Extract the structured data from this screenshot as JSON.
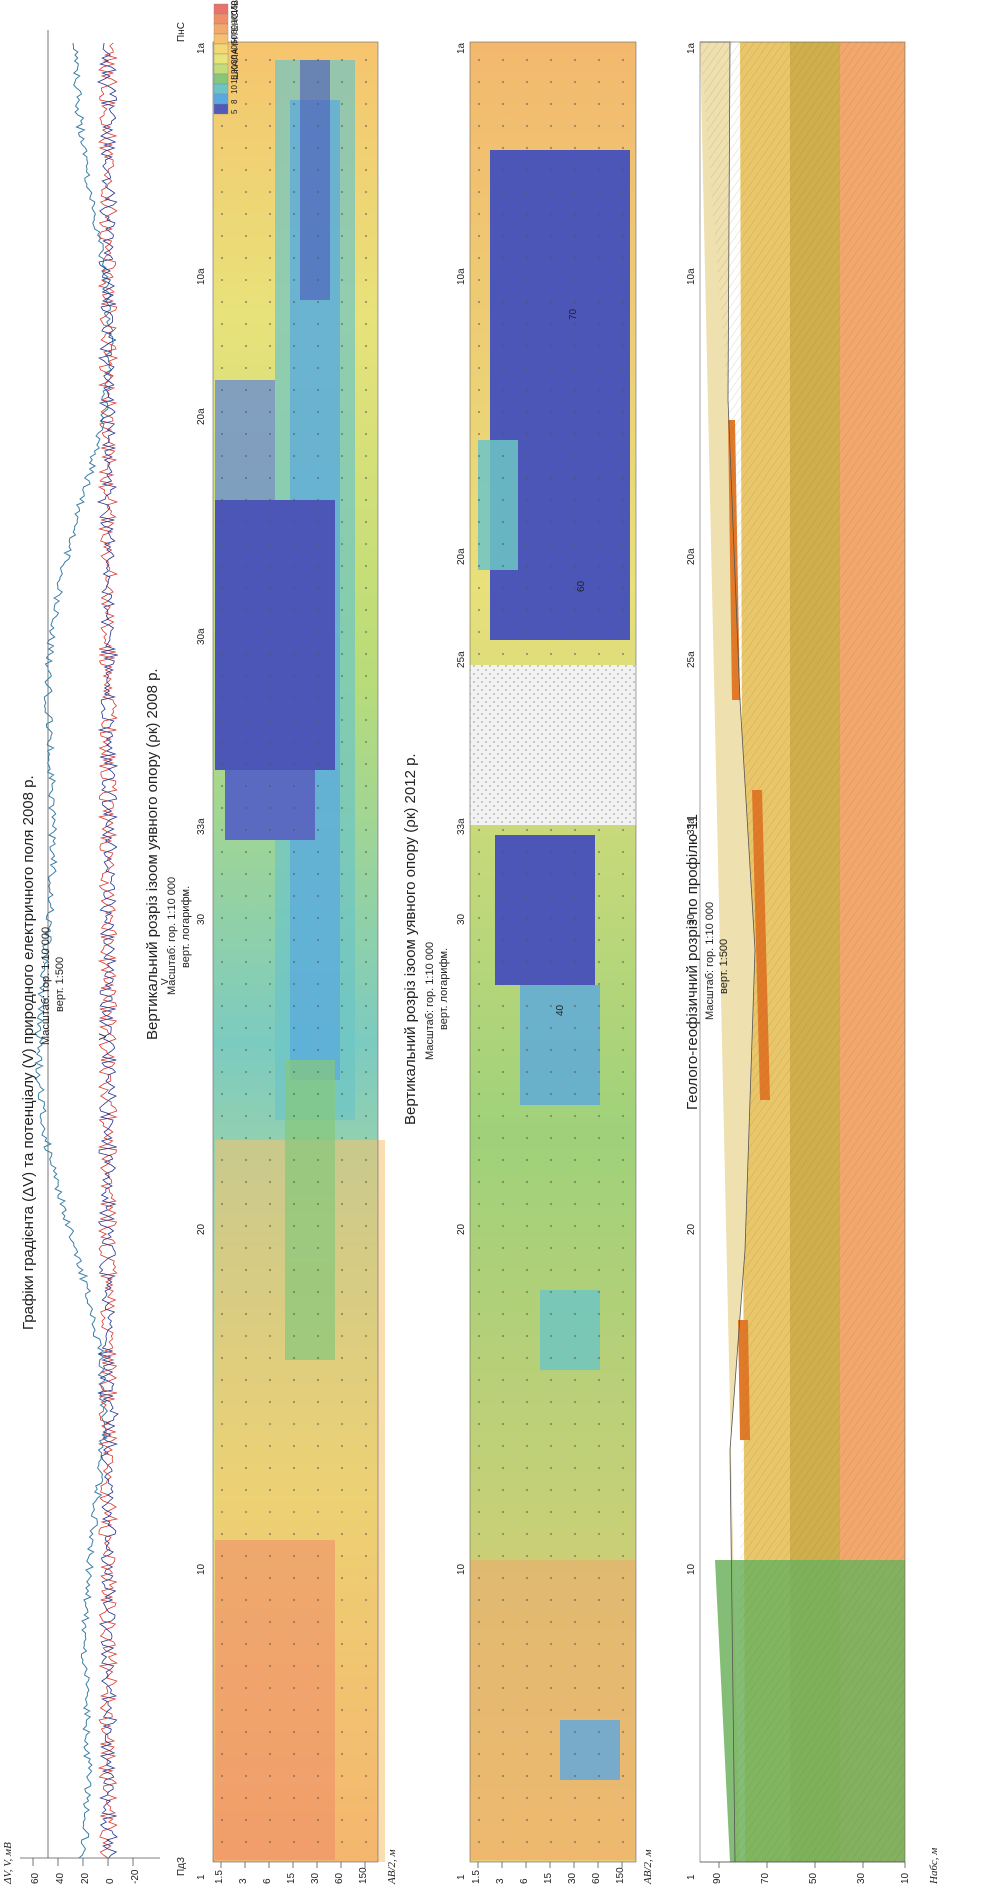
{
  "gradient_panel": {
    "title": "Графіки градієнта (ΔV) та потенціалу (V) природного електричного поля 2008 р.",
    "scale_h": "Масштаб: гор. 1:10 000",
    "scale_v": "верт. 1:500",
    "y_axis_label": "ΔV, V, мВ",
    "y_ticks": [
      "60",
      "40",
      "20",
      "0",
      "-20"
    ],
    "curve_labels": [
      "V",
      "V"
    ]
  },
  "section_2008": {
    "title": "Вертикальний розріз ізоом уявного опору (ρк) 2008 р.",
    "scale_h": "Масштаб: гор. 1:10 000",
    "scale_v": "верт. логарифм.",
    "depth_label": "AB/2, м",
    "depth_ticks": [
      "1.5",
      "3",
      "6",
      "15",
      "30",
      "60",
      "150"
    ],
    "start_label": "ПдЗ",
    "end_label": "ПнС"
  },
  "legend": {
    "title": "ШКАЛА ІНТЕНСИВНОСТІ ρ, Омм",
    "values": [
      "150",
      "100",
      "80",
      "50",
      "40",
      "30",
      "20",
      "15",
      "10",
      "8",
      "5"
    ],
    "colors": [
      "#e8736b",
      "#ef8f6a",
      "#f3a86c",
      "#f6c06e",
      "#f3d873",
      "#e8e47a",
      "#c2dc78",
      "#86c77a",
      "#6cc4c6",
      "#5aa8e0",
      "#5058b8"
    ]
  },
  "section_2012": {
    "title": "Вертикальний розріз ізоом уявного опору (ρк) 2012 р.",
    "scale_h": "Масштаб: гор. 1:10 000",
    "scale_v": "верт. логарифм.",
    "depth_label": "AB/2, м",
    "depth_ticks": [
      "1.5",
      "3",
      "6",
      "15",
      "30",
      "60",
      "150"
    ],
    "contour_labels": [
      "70",
      "60",
      "40"
    ]
  },
  "geo_section": {
    "title": "Геолого-геофізичний розріз по профілю 11",
    "scale_h": "Масштаб: гор. 1:10 000",
    "scale_v": "верт. 1:500",
    "axis_label": "Набс, м",
    "axis_ticks": [
      "90",
      "70",
      "50",
      "30",
      "10"
    ]
  },
  "pickets": [
    "1",
    "10",
    "20",
    "30",
    "33a",
    "30a",
    "25a",
    "20a",
    "10a",
    "1a"
  ],
  "colors": {
    "red_curve": "#d9382e",
    "blue_curve": "#23358f",
    "potential_curve": "#3a7fa8"
  }
}
